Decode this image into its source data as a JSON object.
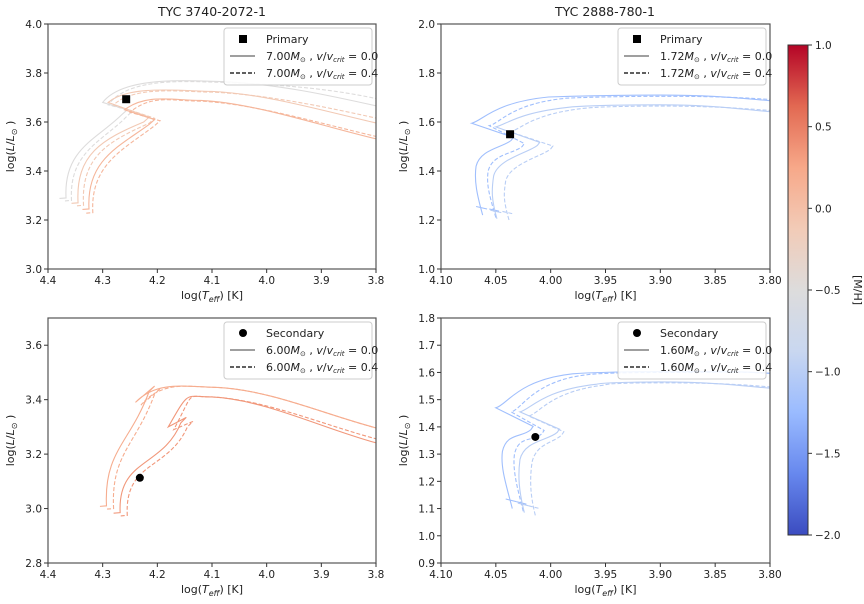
{
  "chart_data": [
    {
      "type": "line",
      "id": "tl",
      "title": "TYC 3740-2072-1",
      "xlabel": "log(T_eff) [K]",
      "ylabel": "log(L/L_sun)",
      "xlim": [
        4.4,
        3.8
      ],
      "ylim": [
        3.0,
        4.0
      ],
      "xticks": [
        "4.4",
        "4.3",
        "4.2",
        "4.1",
        "4.0",
        "3.9",
        "3.8"
      ],
      "yticks": [
        "3.0",
        "3.2",
        "3.4",
        "3.6",
        "3.8",
        "4.0"
      ],
      "legend": {
        "position": "top-right",
        "entries": [
          {
            "marker": "square",
            "label": "Primary"
          },
          {
            "style": "solid",
            "mass": "7.00",
            "vvcrit": "0.0"
          },
          {
            "style": "dashed",
            "mass": "7.00",
            "vvcrit": "0.4"
          }
        ]
      },
      "star": {
        "name": "Primary",
        "marker": "square",
        "x": 4.257,
        "y": 3.693
      },
      "tracks": [
        {
          "mh": -0.5,
          "style": "solid",
          "zams": [
            4.367,
            3.29
          ],
          "knee": [
            4.3,
            3.68
          ],
          "hook": [
            4.265,
            3.63
          ],
          "peak_x": 4.08,
          "peak_y": 3.765,
          "end_y": 3.66
        },
        {
          "mh": -0.5,
          "style": "dashed",
          "zams": [
            4.357,
            3.28
          ],
          "knee": [
            4.29,
            3.67
          ],
          "hook": [
            4.255,
            3.625
          ],
          "peak_x": 4.08,
          "peak_y": 3.762,
          "end_y": 3.69
        },
        {
          "mh": -0.1,
          "style": "solid",
          "zams": [
            4.345,
            3.27
          ],
          "knee": [
            4.29,
            3.68
          ],
          "hook": [
            4.225,
            3.6
          ],
          "peak_x": 4.1,
          "peak_y": 3.725,
          "end_y": 3.59
        },
        {
          "mh": -0.1,
          "style": "dashed",
          "zams": [
            4.335,
            3.26
          ],
          "knee": [
            4.28,
            3.67
          ],
          "hook": [
            4.215,
            3.595
          ],
          "peak_x": 4.1,
          "peak_y": 3.722,
          "end_y": 3.61
        },
        {
          "mh": 0.1,
          "style": "solid",
          "zams": [
            4.325,
            3.245
          ],
          "knee": [
            4.26,
            3.65
          ],
          "hook": [
            4.215,
            3.59
          ],
          "peak_x": 4.12,
          "peak_y": 3.688,
          "end_y": 3.525
        },
        {
          "mh": 0.1,
          "style": "dashed",
          "zams": [
            4.318,
            3.23
          ],
          "knee": [
            4.25,
            3.64
          ],
          "hook": [
            4.205,
            3.585
          ],
          "peak_x": 4.12,
          "peak_y": 3.685,
          "end_y": 3.535
        }
      ]
    },
    {
      "type": "line",
      "id": "tr",
      "title": "TYC 2888-780-1",
      "xlabel": "log(T_eff) [K]",
      "ylabel": "log(L/L_sun)",
      "xlim": [
        4.1,
        3.8
      ],
      "ylim": [
        1.0,
        2.0
      ],
      "xticks": [
        "4.10",
        "4.05",
        "4.00",
        "3.95",
        "3.90",
        "3.85",
        "3.80"
      ],
      "yticks": [
        "1.0",
        "1.2",
        "1.4",
        "1.6",
        "1.8",
        "2.0"
      ],
      "legend": {
        "position": "top-right",
        "entries": [
          {
            "marker": "square",
            "label": "Primary"
          },
          {
            "style": "solid",
            "mass": "1.72",
            "vvcrit": "0.0"
          },
          {
            "style": "dashed",
            "mass": "1.72",
            "vvcrit": "0.4"
          }
        ]
      },
      "star": {
        "name": "Primary",
        "marker": "square",
        "x": 4.037,
        "y": 1.55
      },
      "tracks": [
        {
          "mh": -1.2,
          "style": "solid",
          "zams": [
            4.062,
            1.22
          ],
          "bend": [
            4.068,
            1.42
          ],
          "hook": [
            4.036,
            1.525
          ],
          "tip": [
            4.072,
            1.595
          ],
          "peak_x": 3.9,
          "peak_y": 1.71,
          "end_y": 1.685
        },
        {
          "mh": -1.2,
          "style": "dashed",
          "zams": [
            4.05,
            1.21
          ],
          "bend": [
            4.057,
            1.4
          ],
          "hook": [
            4.026,
            1.5
          ],
          "tip": [
            4.056,
            1.585
          ],
          "peak_x": 3.9,
          "peak_y": 1.705,
          "end_y": 1.69
        },
        {
          "mh": -1.0,
          "style": "solid",
          "zams": [
            4.049,
            1.205
          ],
          "bend": [
            4.052,
            1.38
          ],
          "hook": [
            4.012,
            1.505
          ],
          "tip": [
            4.05,
            1.58
          ],
          "peak_x": 3.9,
          "peak_y": 1.67,
          "end_y": 1.64
        },
        {
          "mh": -1.0,
          "style": "dashed",
          "zams": [
            4.038,
            1.2
          ],
          "bend": [
            4.041,
            1.36
          ],
          "hook": [
            4.0,
            1.49
          ],
          "tip": [
            4.037,
            1.56
          ],
          "peak_x": 3.9,
          "peak_y": 1.665,
          "end_y": 1.645
        }
      ]
    },
    {
      "type": "line",
      "id": "bl",
      "title": "",
      "xlabel": "log(T_eff) [K]",
      "ylabel": "log(L/L_sun)",
      "xlim": [
        4.4,
        3.8
      ],
      "ylim": [
        2.8,
        3.7
      ],
      "xticks": [
        "4.4",
        "4.3",
        "4.2",
        "4.1",
        "4.0",
        "3.9",
        "3.8"
      ],
      "yticks": [
        "2.8",
        "3.0",
        "3.2",
        "3.4",
        "3.6"
      ],
      "legend": {
        "position": "top-right",
        "entries": [
          {
            "marker": "circle",
            "label": "Secondary"
          },
          {
            "style": "solid",
            "mass": "6.00",
            "vvcrit": "0.0"
          },
          {
            "style": "dashed",
            "mass": "6.00",
            "vvcrit": "0.4"
          }
        ]
      },
      "star": {
        "name": "Secondary",
        "marker": "circle",
        "x": 4.232,
        "y": 3.113
      },
      "tracks": [
        {
          "mh": 0.2,
          "style": "solid",
          "zams": [
            4.293,
            3.01
          ],
          "knee": [
            4.24,
            3.39
          ],
          "hook": [
            4.215,
            3.43
          ],
          "peak_x": 4.09,
          "peak_y": 3.445,
          "end_y": 3.29
        },
        {
          "mh": 0.2,
          "style": "dashed",
          "zams": [
            4.28,
            3.0
          ],
          "knee": [
            4.23,
            3.38
          ],
          "hook": [
            4.205,
            3.42
          ],
          "peak_x": 4.09,
          "peak_y": 3.445,
          "end_y": 3.29
        },
        {
          "mh": 0.35,
          "style": "solid",
          "zams": [
            4.268,
            2.985
          ],
          "knee": [
            4.18,
            3.3
          ],
          "hook": [
            4.157,
            3.315
          ],
          "peak_x": 4.1,
          "peak_y": 3.41,
          "end_y": 3.235
        },
        {
          "mh": 0.35,
          "style": "dashed",
          "zams": [
            4.255,
            2.975
          ],
          "knee": [
            4.17,
            3.29
          ],
          "hook": [
            4.145,
            3.3
          ],
          "peak_x": 4.1,
          "peak_y": 3.41,
          "end_y": 3.25
        }
      ]
    },
    {
      "type": "line",
      "id": "br",
      "title": "",
      "xlabel": "log(T_eff) [K]",
      "ylabel": "log(L/L_sun)",
      "xlim": [
        4.1,
        3.8
      ],
      "ylim": [
        0.9,
        1.8
      ],
      "xticks": [
        "4.10",
        "4.05",
        "4.00",
        "3.95",
        "3.90",
        "3.85",
        "3.80"
      ],
      "yticks": [
        "0.9",
        "1.0",
        "1.1",
        "1.2",
        "1.3",
        "1.4",
        "1.5",
        "1.6",
        "1.7",
        "1.8"
      ],
      "legend": {
        "position": "top-right",
        "entries": [
          {
            "marker": "circle",
            "label": "Secondary"
          },
          {
            "style": "solid",
            "mass": "1.60",
            "vvcrit": "0.0"
          },
          {
            "style": "dashed",
            "mass": "1.60",
            "vvcrit": "0.4"
          }
        ]
      },
      "star": {
        "name": "Secondary",
        "marker": "circle",
        "x": 4.014,
        "y": 1.363
      },
      "tracks": [
        {
          "mh": -1.2,
          "style": "solid",
          "zams": [
            4.035,
            1.1
          ],
          "bend": [
            4.044,
            1.31
          ],
          "hook": [
            4.018,
            1.39
          ],
          "tip": [
            4.05,
            1.47
          ],
          "peak_x": 3.9,
          "peak_y": 1.603,
          "end_y": 1.595
        },
        {
          "mh": -1.2,
          "style": "dashed",
          "zams": [
            4.025,
            1.09
          ],
          "bend": [
            4.033,
            1.3
          ],
          "hook": [
            4.008,
            1.375
          ],
          "tip": [
            4.036,
            1.455
          ],
          "peak_x": 3.9,
          "peak_y": 1.6,
          "end_y": 1.595
        },
        {
          "mh": -1.0,
          "style": "solid",
          "zams": [
            4.024,
            1.085
          ],
          "bend": [
            4.028,
            1.28
          ],
          "hook": [
            3.994,
            1.38
          ],
          "tip": [
            4.028,
            1.455
          ],
          "peak_x": 3.9,
          "peak_y": 1.565,
          "end_y": 1.54
        },
        {
          "mh": -1.0,
          "style": "dashed",
          "zams": [
            4.014,
            1.075
          ],
          "bend": [
            4.017,
            1.27
          ],
          "hook": [
            3.99,
            1.37
          ],
          "tip": [
            4.02,
            1.44
          ],
          "peak_x": 3.9,
          "peak_y": 1.562,
          "end_y": 1.545
        }
      ]
    }
  ],
  "colorbar": {
    "label": "[M/H]",
    "min": -2.0,
    "max": 1.0,
    "ticks": [
      "1.0",
      "0.5",
      "0.0",
      "−0.5",
      "−1.0",
      "−1.5",
      "−2.0"
    ],
    "tick_values": [
      1.0,
      0.5,
      0.0,
      -0.5,
      -1.0,
      -1.5,
      -2.0
    ],
    "colormap": "coolwarm",
    "stops": [
      "#3b4cc0",
      "#6788ee",
      "#9abbff",
      "#c9d7f0",
      "#dddcdc",
      "#f2cbb7",
      "#f7a889",
      "#e26952",
      "#b40426"
    ]
  }
}
